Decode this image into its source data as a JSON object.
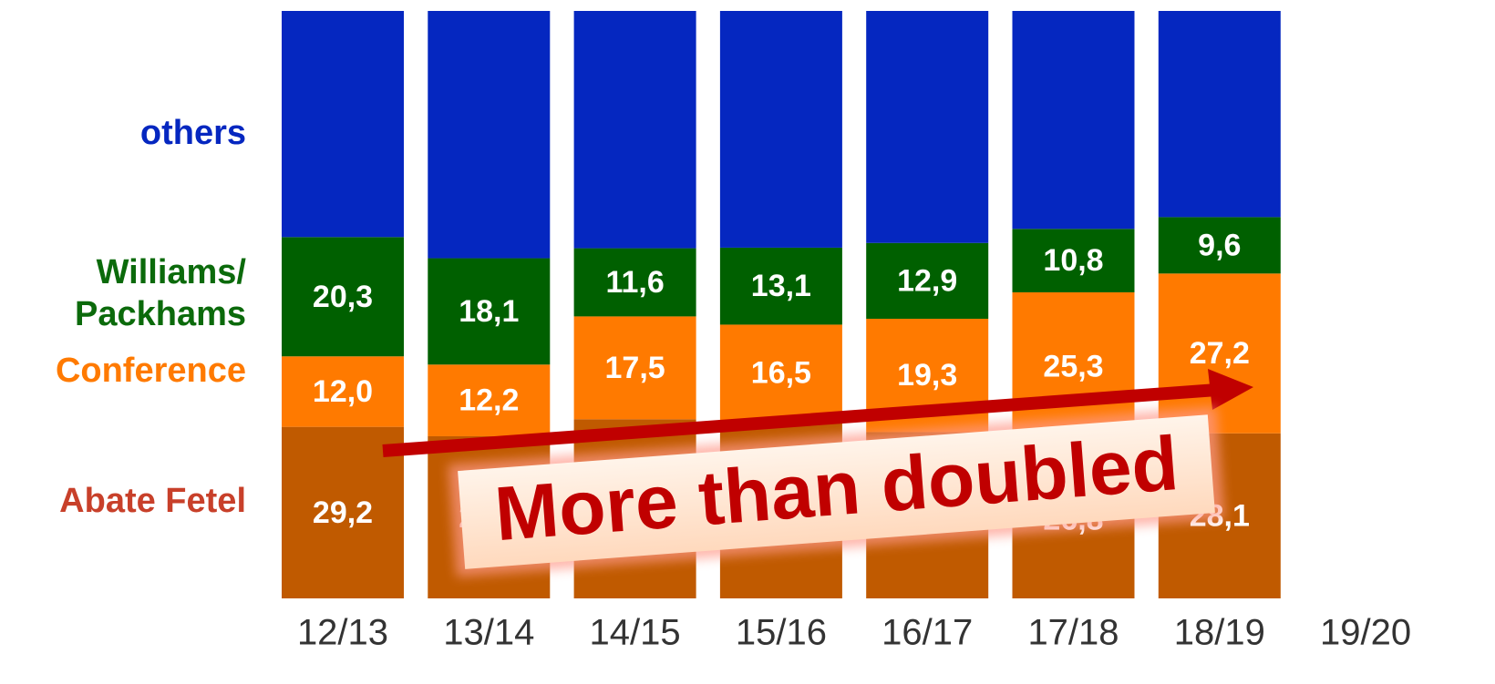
{
  "chart_data": {
    "type": "stacked_bar",
    "categories": [
      "12/13",
      "13/14",
      "14/15",
      "15/16",
      "16/17",
      "17/18",
      "18/19",
      "19/20"
    ],
    "ylim": [
      0,
      100
    ],
    "series": [
      {
        "name": "Abate Fetel",
        "color": "#c05a00",
        "label_color": "#c8402a",
        "values": [
          29.2,
          27.6,
          30.5,
          30.1,
          28.3,
          26.8,
          28.1,
          null
        ],
        "value_labels": [
          "29,2",
          "27,6",
          "30,5",
          "30,1",
          "28,3",
          "26,8",
          "28,1",
          null
        ]
      },
      {
        "name": "Conference",
        "color": "#ff7a00",
        "label_color": "#ff7a00",
        "values": [
          12.0,
          12.2,
          17.5,
          16.5,
          19.3,
          25.3,
          27.2,
          null
        ],
        "value_labels": [
          "12,0",
          "12,2",
          "17,5",
          "16,5",
          "19,3",
          "25,3",
          "27,2",
          null
        ]
      },
      {
        "name": "Williams/ Packhams",
        "color": "#006000",
        "label_color": "#0b6a0b",
        "values": [
          20.3,
          18.1,
          11.6,
          13.1,
          12.9,
          10.8,
          9.6,
          null
        ],
        "value_labels": [
          "20,3",
          "18,1",
          "11,6",
          "13,1",
          "12,9",
          "10,8",
          "9,6",
          null
        ]
      },
      {
        "name": "others",
        "color": "#0527c0",
        "label_color": "#0527c0",
        "values": [
          38.5,
          42.1,
          40.4,
          40.3,
          39.5,
          37.1,
          35.1,
          null
        ]
      }
    ],
    "annotation": "More than doubled"
  }
}
